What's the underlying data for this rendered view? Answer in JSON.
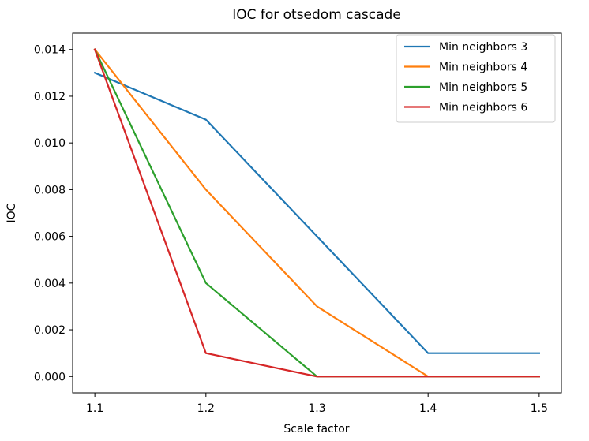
{
  "chart_data": {
    "type": "line",
    "title": "IOC for otsedom cascade",
    "xlabel": "Scale factor",
    "ylabel": "IOC",
    "x": [
      1.1,
      1.2,
      1.3,
      1.4,
      1.5
    ],
    "xticks": [
      "1.1",
      "1.2",
      "1.3",
      "1.4",
      "1.5"
    ],
    "yticks": [
      "0.000",
      "0.002",
      "0.004",
      "0.006",
      "0.008",
      "0.010",
      "0.012",
      "0.014"
    ],
    "xlim": [
      1.08,
      1.52
    ],
    "ylim": [
      -0.0007,
      0.0147
    ],
    "grid": false,
    "legend_position": "upper right",
    "series": [
      {
        "name": "Min neighbors 3",
        "color": "#1f77b4",
        "values": [
          0.013,
          0.011,
          0.006,
          0.001,
          0.001
        ]
      },
      {
        "name": "Min neighbors 4",
        "color": "#ff7f0e",
        "values": [
          0.014,
          0.008,
          0.003,
          0.0,
          0.0
        ]
      },
      {
        "name": "Min neighbors 5",
        "color": "#2ca02c",
        "values": [
          0.014,
          0.004,
          0.0,
          0.0,
          0.0
        ]
      },
      {
        "name": "Min neighbors 6",
        "color": "#d62728",
        "values": [
          0.014,
          0.001,
          0.0,
          0.0,
          0.0
        ]
      }
    ]
  }
}
